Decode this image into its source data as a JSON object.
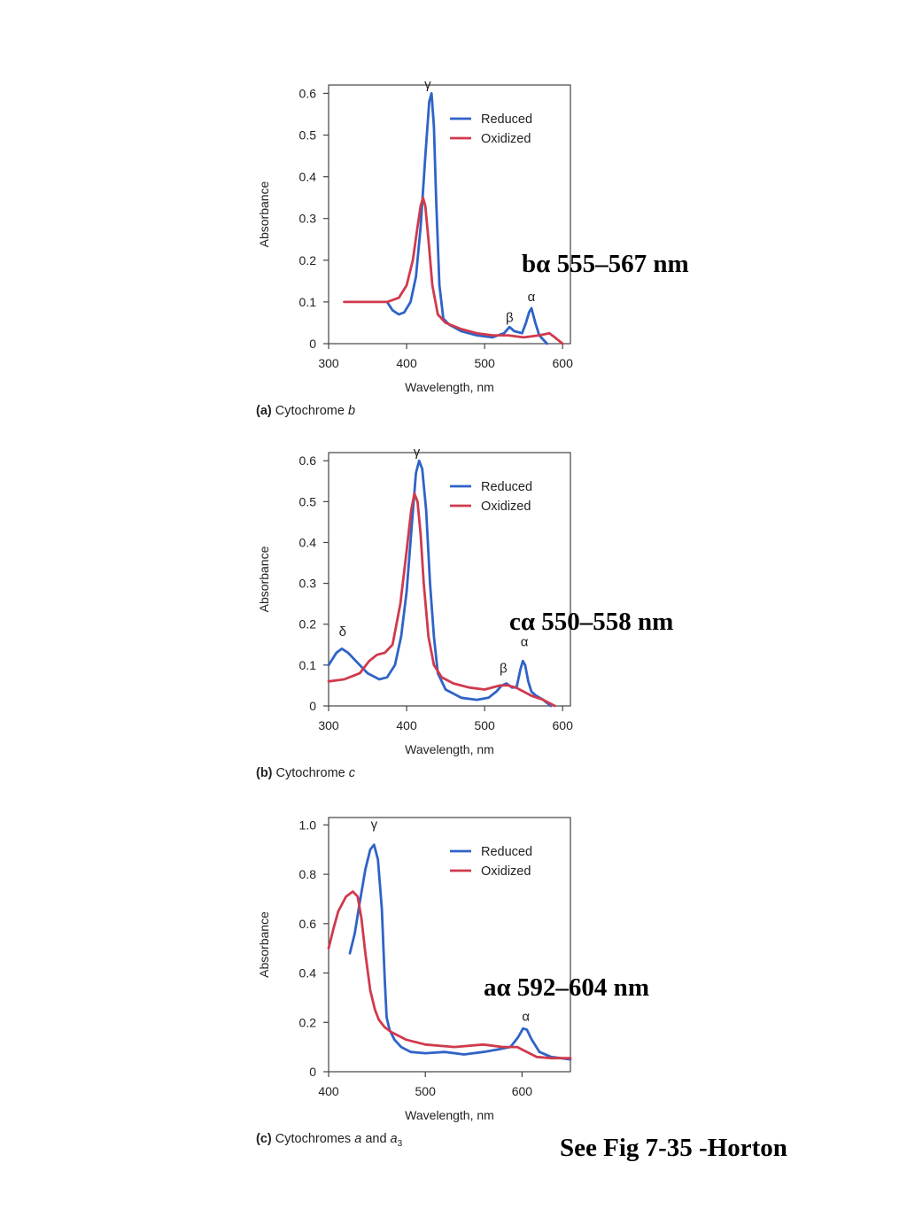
{
  "chart_data": [
    {
      "type": "line",
      "caption_letter": "(a)",
      "caption_text": "Cytochrome ",
      "caption_italic": "b",
      "caption_sub": "",
      "xlabel": "Wavelength, nm",
      "ylabel": "Absorbance",
      "xlim": [
        300,
        610
      ],
      "ylim": [
        0,
        0.62
      ],
      "xticks": [
        300,
        400,
        500,
        600
      ],
      "yticks": [
        0,
        0.1,
        0.2,
        0.3,
        0.4,
        0.5,
        0.6
      ],
      "ytick_labels": [
        "0",
        "0.1",
        "0.2",
        "0.3",
        "0.4",
        "0.5",
        "0.6"
      ],
      "grid": false,
      "legend_position": "top-right",
      "series": [
        {
          "name": "Reduced",
          "color": "#2f63c7",
          "x": [
            375,
            382,
            390,
            397,
            405,
            412,
            418,
            424,
            429,
            432,
            435,
            438,
            442,
            447,
            455,
            470,
            490,
            510,
            525,
            532,
            538,
            548,
            553,
            557,
            560,
            565,
            570,
            580
          ],
          "y": [
            0.1,
            0.08,
            0.07,
            0.075,
            0.1,
            0.16,
            0.28,
            0.45,
            0.58,
            0.6,
            0.52,
            0.34,
            0.14,
            0.06,
            0.045,
            0.03,
            0.02,
            0.015,
            0.025,
            0.04,
            0.03,
            0.025,
            0.05,
            0.075,
            0.085,
            0.05,
            0.02,
            0.0
          ]
        },
        {
          "name": "Oxidized",
          "color": "#d03a4d",
          "x": [
            320,
            350,
            375,
            390,
            400,
            408,
            414,
            418,
            421,
            424,
            428,
            433,
            440,
            450,
            470,
            490,
            510,
            530,
            550,
            570,
            583,
            590,
            600
          ],
          "y": [
            0.1,
            0.1,
            0.1,
            0.11,
            0.14,
            0.2,
            0.28,
            0.33,
            0.35,
            0.33,
            0.25,
            0.14,
            0.07,
            0.05,
            0.035,
            0.025,
            0.02,
            0.02,
            0.015,
            0.02,
            0.025,
            0.015,
            0.0
          ]
        }
      ],
      "annotations": [
        {
          "text": "γ",
          "x": 427,
          "y": 0.62
        },
        {
          "text": "β",
          "x": 532,
          "y": 0.06
        },
        {
          "text": "α",
          "x": 560,
          "y": 0.11
        }
      ]
    },
    {
      "type": "line",
      "caption_letter": "(b)",
      "caption_text": "Cytochrome ",
      "caption_italic": "c",
      "caption_sub": "",
      "xlabel": "Wavelength, nm",
      "ylabel": "Absorbance",
      "xlim": [
        300,
        610
      ],
      "ylim": [
        0,
        0.62
      ],
      "xticks": [
        300,
        400,
        500,
        600
      ],
      "yticks": [
        0,
        0.1,
        0.2,
        0.3,
        0.4,
        0.5,
        0.6
      ],
      "ytick_labels": [
        "0",
        "0.1",
        "0.2",
        "0.3",
        "0.4",
        "0.5",
        "0.6"
      ],
      "grid": false,
      "legend_position": "top-right",
      "series": [
        {
          "name": "Reduced",
          "color": "#2f63c7",
          "x": [
            300,
            305,
            310,
            317,
            325,
            335,
            350,
            365,
            375,
            385,
            393,
            400,
            407,
            412,
            416,
            420,
            425,
            430,
            435,
            440,
            450,
            470,
            490,
            505,
            515,
            522,
            528,
            535,
            541,
            546,
            549,
            552,
            556,
            560,
            566,
            575,
            585
          ],
          "y": [
            0.1,
            0.115,
            0.13,
            0.14,
            0.13,
            0.11,
            0.08,
            0.065,
            0.07,
            0.1,
            0.17,
            0.28,
            0.45,
            0.57,
            0.6,
            0.58,
            0.48,
            0.3,
            0.17,
            0.08,
            0.04,
            0.02,
            0.015,
            0.02,
            0.035,
            0.05,
            0.055,
            0.045,
            0.045,
            0.09,
            0.11,
            0.1,
            0.06,
            0.035,
            0.025,
            0.015,
            0.0
          ]
        },
        {
          "name": "Oxidized",
          "color": "#d03a4d",
          "x": [
            300,
            320,
            340,
            352,
            362,
            372,
            382,
            392,
            400,
            406,
            410,
            414,
            418,
            422,
            428,
            435,
            445,
            460,
            480,
            500,
            520,
            530,
            540,
            550,
            560,
            575,
            590
          ],
          "y": [
            0.06,
            0.065,
            0.08,
            0.11,
            0.125,
            0.13,
            0.15,
            0.25,
            0.38,
            0.48,
            0.52,
            0.5,
            0.42,
            0.3,
            0.17,
            0.1,
            0.07,
            0.055,
            0.045,
            0.04,
            0.05,
            0.05,
            0.045,
            0.035,
            0.025,
            0.015,
            0.0
          ]
        }
      ],
      "annotations": [
        {
          "text": "γ",
          "x": 413,
          "y": 0.62
        },
        {
          "text": "δ",
          "x": 318,
          "y": 0.18
        },
        {
          "text": "β",
          "x": 524,
          "y": 0.09
        },
        {
          "text": "α",
          "x": 551,
          "y": 0.155
        }
      ]
    },
    {
      "type": "line",
      "caption_letter": "(c)",
      "caption_text": "Cytochromes ",
      "caption_italic": "a",
      "caption_mid": " and ",
      "caption_italic2": "a",
      "caption_sub": "3",
      "xlabel": "Wavelength, nm",
      "ylabel": "Absorbance",
      "xlim": [
        400,
        650
      ],
      "ylim": [
        0,
        1.03
      ],
      "xticks": [
        400,
        500,
        600
      ],
      "yticks": [
        0,
        0.2,
        0.4,
        0.6,
        0.8,
        1.0
      ],
      "ytick_labels": [
        "0",
        "0.2",
        "0.4",
        "0.6",
        "0.8",
        "1.0"
      ],
      "grid": false,
      "legend_position": "top-right",
      "series": [
        {
          "name": "Reduced",
          "color": "#2f63c7",
          "x": [
            422,
            427,
            432,
            438,
            443,
            447,
            451,
            455,
            458,
            460,
            463,
            468,
            475,
            485,
            500,
            520,
            540,
            560,
            575,
            588,
            596,
            601,
            605,
            610,
            618,
            630,
            650
          ],
          "y": [
            0.48,
            0.56,
            0.68,
            0.82,
            0.9,
            0.92,
            0.86,
            0.66,
            0.38,
            0.22,
            0.17,
            0.13,
            0.1,
            0.08,
            0.075,
            0.08,
            0.07,
            0.08,
            0.09,
            0.1,
            0.14,
            0.175,
            0.17,
            0.13,
            0.08,
            0.06,
            0.05
          ]
        },
        {
          "name": "Oxidized",
          "color": "#d03a4d",
          "x": [
            400,
            405,
            410,
            418,
            425,
            430,
            434,
            438,
            443,
            448,
            452,
            458,
            465,
            480,
            500,
            530,
            560,
            580,
            595,
            605,
            615,
            630,
            650
          ],
          "y": [
            0.5,
            0.58,
            0.65,
            0.71,
            0.73,
            0.71,
            0.62,
            0.48,
            0.33,
            0.25,
            0.21,
            0.18,
            0.16,
            0.13,
            0.11,
            0.1,
            0.11,
            0.1,
            0.1,
            0.08,
            0.06,
            0.055,
            0.055
          ]
        }
      ],
      "annotations": [
        {
          "text": "γ",
          "x": 447,
          "y": 1.0
        },
        {
          "text": "α",
          "x": 604,
          "y": 0.22
        }
      ]
    }
  ],
  "overlays": {
    "b_alpha": "bα 555–567 nm",
    "c_alpha": "cα 550–558 nm",
    "a_alpha": "aα 592–604 nm",
    "footer": "See Fig 7-35 -Horton"
  }
}
